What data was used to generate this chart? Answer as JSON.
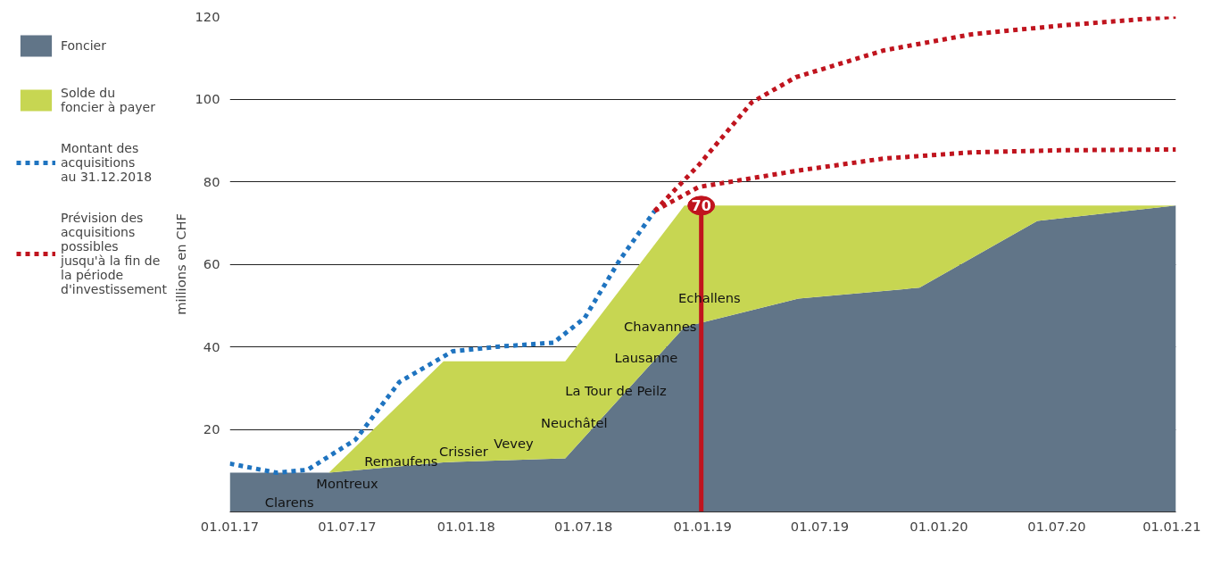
{
  "chart_data": {
    "type": "area",
    "ylabel": "millions en CHF",
    "stacked": true,
    "x": [
      "2017-01-01",
      "2017-06-03",
      "2017-11-27",
      "2018-06-03",
      "2018-12-04",
      "2019-05-29",
      "2019-12-02",
      "2020-06-01",
      "2021-01-01"
    ],
    "series": [
      {
        "name": "Foncier",
        "color": "#617588",
        "values": [
          9.5,
          9.5,
          12.0,
          13.0,
          44.8,
          51.7,
          54.3,
          70.5,
          74.2
        ]
      },
      {
        "name": "Solde du\nfoncier à payer",
        "color": "#c7d652",
        "values": [
          0,
          0,
          24.5,
          23.5,
          29.4,
          22.5,
          19.9,
          3.7,
          0
        ]
      },
      {
        "name": "Montant des\nacquisitions\nau 31.12.2018",
        "type": "line",
        "color": "#1f74c0",
        "line_style": "dotted",
        "x": [
          "2017-01-01",
          "2017-03-14",
          "2017-05-01",
          "2017-07-14",
          "2017-09-20",
          "2017-12-11",
          "2018-02-17",
          "2018-05-16",
          "2018-07-03",
          "2018-08-26",
          "2018-10-19"
        ],
        "values": [
          11.7,
          9.5,
          10.2,
          17.5,
          31.5,
          38.9,
          40.0,
          41.0,
          47,
          61,
          72.9
        ]
      },
      {
        "name": "Prévision des\nacquisitions\npossibles\njusqu'à la fin de\nla période\nd'investissement",
        "type": "line",
        "color": "#c0141e",
        "line_style": "dotted",
        "x": [
          "2018-10-19",
          "2018-12-26",
          "2019-03-18",
          "2019-05-25",
          "2019-10-08",
          "2020-02-21",
          "2020-07-06",
          "2021-01-01"
        ],
        "values": [
          72.9,
          84,
          99.2,
          105.3,
          111.8,
          115.7,
          117.8,
          120
        ]
      },
      {
        "type": "line",
        "color": "#c0141e",
        "line_style": "dotted",
        "x": [
          "2018-10-19",
          "2018-12-26",
          "2019-05-25",
          "2019-10-08",
          "2020-02-21",
          "2020-07-06",
          "2021-01-01"
        ],
        "values": [
          72.9,
          78.7,
          82.6,
          85.6,
          87.1,
          87.6,
          87.8
        ]
      }
    ],
    "ref_lines": [
      {
        "axis": "x",
        "value": "2018-12-30",
        "label": "70",
        "color": "#c0141e"
      }
    ],
    "annotations": [
      "Clarens",
      "Montreux",
      "Remaufens",
      "Crissier",
      "Vevey",
      "Neuchâtel",
      "La Tour de Peilz",
      "Lausanne",
      "Chavannes",
      "Echallens"
    ],
    "xlim": [
      "2017-01-01",
      "2021-01-01"
    ],
    "ylim": [
      0,
      120
    ],
    "xticks": [
      {
        "value": "2017-01-01",
        "label": "01.01.17"
      },
      {
        "value": "2017-07-01",
        "label": "01.07.17"
      },
      {
        "value": "2018-01-01",
        "label": "01.01.18"
      },
      {
        "value": "2018-07-01",
        "label": "01.07.18"
      },
      {
        "value": "2019-01-01",
        "label": "01.01.19"
      },
      {
        "value": "2019-07-01",
        "label": "01.07.19"
      },
      {
        "value": "2020-01-01",
        "label": "01.01.20"
      },
      {
        "value": "2020-07-01",
        "label": "01.07.20"
      },
      {
        "value": "2021-01-01",
        "label": "01.01.21"
      }
    ],
    "yticks": [
      20,
      40,
      60,
      80,
      100,
      120
    ],
    "grid": "y",
    "legend": "left",
    "marker": "none"
  }
}
